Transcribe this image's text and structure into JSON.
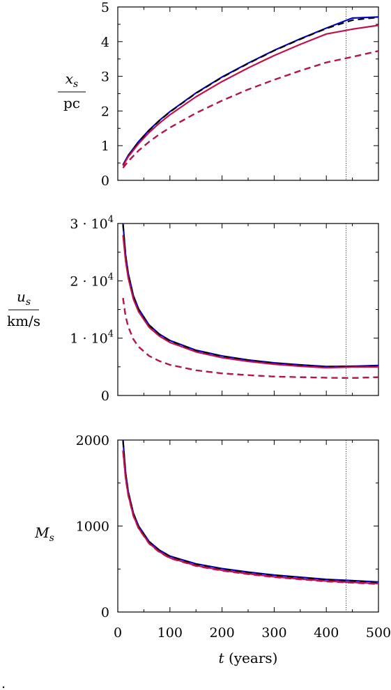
{
  "chart_data": [
    {
      "type": "line",
      "ylabel": {
        "num": "x",
        "sub": "s",
        "den": "pc"
      },
      "xlim": [
        0,
        500
      ],
      "ylim": [
        0,
        5
      ],
      "yticks": [
        0,
        1,
        2,
        3,
        4,
        5
      ],
      "ytick_labels": [
        "0",
        "1",
        "2",
        "3",
        "4",
        "5"
      ],
      "vline_x": 438,
      "series": [
        {
          "color": "#0000cc",
          "dash": "solid",
          "x": [
            10,
            20,
            40,
            60,
            80,
            100,
            150,
            200,
            250,
            300,
            350,
            400,
            450,
            500
          ],
          "y": [
            0.45,
            0.72,
            1.12,
            1.45,
            1.73,
            1.98,
            2.52,
            2.98,
            3.38,
            3.75,
            4.08,
            4.39,
            4.68,
            4.71
          ]
        },
        {
          "color": "#000000",
          "dash": "dashed",
          "x": [
            10,
            20,
            40,
            60,
            80,
            100,
            150,
            200,
            250,
            300,
            350,
            400,
            450,
            500
          ],
          "y": [
            0.44,
            0.71,
            1.11,
            1.44,
            1.72,
            1.97,
            2.51,
            2.97,
            3.37,
            3.74,
            4.07,
            4.38,
            4.62,
            4.7
          ]
        },
        {
          "color": "#c0104f",
          "dash": "solid",
          "x": [
            10,
            20,
            40,
            60,
            80,
            100,
            150,
            200,
            250,
            300,
            350,
            400,
            450,
            500
          ],
          "y": [
            0.42,
            0.68,
            1.06,
            1.38,
            1.65,
            1.89,
            2.41,
            2.85,
            3.24,
            3.6,
            3.92,
            4.22,
            4.36,
            4.47
          ]
        },
        {
          "color": "#000000",
          "dash": "dashed",
          "x": [
            10,
            20,
            40,
            60,
            80,
            100,
            150,
            200,
            250,
            300,
            350,
            400,
            450,
            500
          ],
          "y": [
            0.36,
            0.55,
            0.86,
            1.11,
            1.33,
            1.52,
            1.94,
            2.3,
            2.62,
            2.9,
            3.16,
            3.4,
            3.56,
            3.73
          ]
        },
        {
          "color": "#c0104f",
          "dash": "dashed",
          "x": [
            10,
            20,
            40,
            60,
            80,
            100,
            150,
            200,
            250,
            300,
            350,
            400,
            450,
            500
          ],
          "y": [
            0.36,
            0.55,
            0.86,
            1.11,
            1.33,
            1.52,
            1.94,
            2.3,
            2.62,
            2.9,
            3.16,
            3.4,
            3.56,
            3.73
          ]
        }
      ]
    },
    {
      "type": "line",
      "ylabel": {
        "num": "u",
        "sub": "s",
        "den": "km/s"
      },
      "xlim": [
        0,
        500
      ],
      "ylim": [
        0,
        30000
      ],
      "yticks": [
        0,
        10000,
        20000,
        30000
      ],
      "ytick_labels": [
        "0",
        "1 · 10",
        "2 · 10",
        "3 · 10"
      ],
      "ytick_exp": "4",
      "vline_x": 438,
      "series": [
        {
          "color": "#0000cc",
          "dash": "solid",
          "x": [
            10,
            15,
            20,
            30,
            40,
            60,
            80,
            100,
            150,
            200,
            250,
            300,
            350,
            400,
            450,
            500
          ],
          "y": [
            30000,
            24500,
            21300,
            17400,
            15100,
            12300,
            10700,
            9600,
            7900,
            6900,
            6200,
            5700,
            5350,
            5050,
            5100,
            5250
          ]
        },
        {
          "color": "#000000",
          "dash": "dashed",
          "x": [
            10,
            15,
            20,
            30,
            40,
            60,
            80,
            100,
            150,
            200,
            250,
            300,
            350,
            400,
            450,
            500
          ],
          "y": [
            29800,
            24400,
            21200,
            17300,
            15000,
            12250,
            10650,
            9550,
            7850,
            6850,
            6150,
            5650,
            5300,
            5000,
            5050,
            5150
          ]
        },
        {
          "color": "#c0104f",
          "dash": "solid",
          "x": [
            10,
            15,
            20,
            30,
            40,
            60,
            80,
            100,
            150,
            200,
            250,
            300,
            350,
            400,
            450,
            500
          ],
          "y": [
            28000,
            23500,
            20500,
            16800,
            14600,
            11900,
            10350,
            9250,
            7600,
            6600,
            5950,
            5450,
            5100,
            4850,
            4950,
            4950
          ]
        },
        {
          "color": "#000000",
          "dash": "dashed",
          "x": [
            10,
            15,
            20,
            30,
            40,
            60,
            80,
            100,
            150,
            200,
            250,
            300,
            350,
            400,
            450,
            500
          ],
          "y": [
            17000,
            13800,
            12000,
            9800,
            8500,
            6900,
            6000,
            5350,
            4400,
            3850,
            3550,
            3300,
            3200,
            3100,
            3050,
            3200
          ]
        },
        {
          "color": "#c0104f",
          "dash": "dashed",
          "x": [
            10,
            15,
            20,
            30,
            40,
            60,
            80,
            100,
            150,
            200,
            250,
            300,
            350,
            400,
            450,
            500
          ],
          "y": [
            17000,
            13800,
            12000,
            9800,
            8500,
            6900,
            6000,
            5350,
            4400,
            3850,
            3550,
            3300,
            3200,
            3100,
            3050,
            3200
          ]
        }
      ]
    },
    {
      "type": "line",
      "ylabel": {
        "text": "M",
        "sub": "s"
      },
      "xlabel": {
        "var": "t",
        "unit": " (years)"
      },
      "xlim": [
        0,
        500
      ],
      "ylim": [
        0,
        2000
      ],
      "yticks": [
        0,
        1000,
        2000
      ],
      "ytick_labels": [
        "0",
        "1000",
        "2000"
      ],
      "xticks": [
        0,
        100,
        200,
        300,
        400,
        500
      ],
      "xtick_labels": [
        "0",
        "100",
        "200",
        "300",
        "400",
        "500"
      ],
      "vline_x": 438,
      "series": [
        {
          "color": "#0000cc",
          "dash": "solid",
          "x": [
            10,
            15,
            20,
            30,
            40,
            60,
            80,
            100,
            150,
            200,
            250,
            300,
            350,
            400,
            450,
            500
          ],
          "y": [
            2000,
            1620,
            1400,
            1150,
            1000,
            820,
            720,
            650,
            560,
            505,
            465,
            430,
            405,
            380,
            365,
            350
          ]
        },
        {
          "color": "#000000",
          "dash": "dashed",
          "x": [
            10,
            15,
            20,
            30,
            40,
            60,
            80,
            100,
            150,
            200,
            250,
            300,
            350,
            400,
            450,
            500
          ],
          "y": [
            1990,
            1615,
            1395,
            1145,
            995,
            815,
            715,
            645,
            555,
            500,
            460,
            425,
            400,
            375,
            360,
            345
          ]
        },
        {
          "color": "#c0104f",
          "dash": "solid",
          "x": [
            10,
            15,
            20,
            30,
            40,
            60,
            80,
            100,
            150,
            200,
            250,
            300,
            350,
            400,
            450,
            500
          ],
          "y": [
            1880,
            1560,
            1360,
            1120,
            975,
            800,
            700,
            630,
            540,
            485,
            445,
            410,
            385,
            360,
            345,
            330
          ]
        },
        {
          "color": "#c0104f",
          "dash": "dashed",
          "x": [
            10,
            15,
            20,
            30,
            40,
            60,
            80,
            100,
            150,
            200,
            250,
            300,
            350,
            400,
            450,
            500
          ],
          "y": [
            1870,
            1555,
            1355,
            1115,
            970,
            795,
            695,
            625,
            535,
            480,
            440,
            405,
            380,
            355,
            340,
            325
          ]
        }
      ]
    }
  ],
  "footer_mark": "."
}
